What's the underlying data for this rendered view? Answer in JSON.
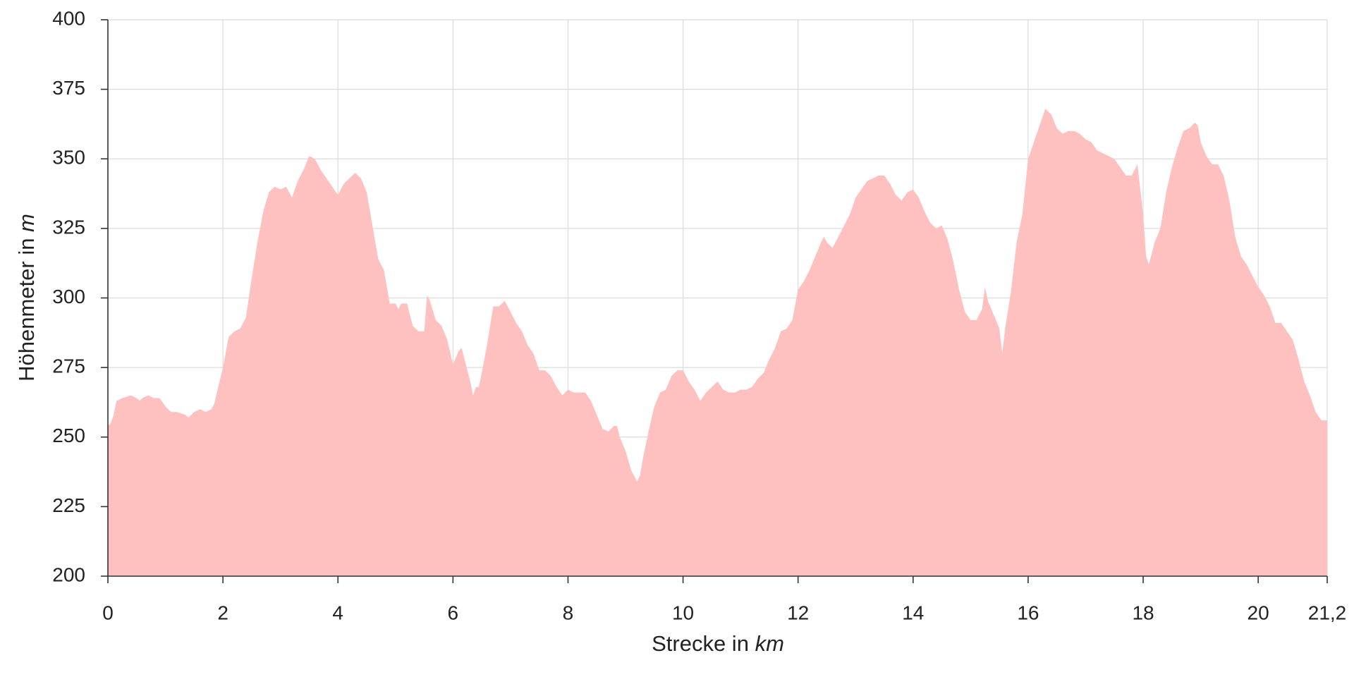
{
  "chart_data": {
    "type": "area",
    "xlabel_text": "Strecke in",
    "xlabel_unit": "km",
    "ylabel_text": "Höhenmeter in",
    "ylabel_unit": "m",
    "color": "#ffc0c0",
    "grid": true,
    "xlim": [
      0,
      21.2
    ],
    "ylim": [
      200,
      400
    ],
    "xticks": [
      0,
      2,
      4,
      6,
      8,
      10,
      12,
      14,
      16,
      18,
      20,
      {
        "value": 21.2,
        "label": "21,2"
      }
    ],
    "yticks": [
      200,
      225,
      250,
      275,
      300,
      325,
      350,
      375,
      400
    ],
    "x": [
      0,
      0.05,
      0.1,
      0.15,
      0.25,
      0.4,
      0.5,
      0.55,
      0.6,
      0.7,
      0.8,
      0.9,
      1.0,
      1.05,
      1.1,
      1.2,
      1.35,
      1.4,
      1.5,
      1.6,
      1.7,
      1.8,
      1.85,
      2.0,
      2.1,
      2.2,
      2.3,
      2.4,
      2.5,
      2.6,
      2.7,
      2.8,
      2.9,
      3.0,
      3.1,
      3.2,
      3.3,
      3.4,
      3.5,
      3.6,
      3.7,
      3.8,
      3.9,
      4.0,
      4.1,
      4.2,
      4.3,
      4.4,
      4.5,
      4.6,
      4.7,
      4.8,
      4.9,
      5.0,
      5.05,
      5.1,
      5.2,
      5.3,
      5.4,
      5.5,
      5.55,
      5.6,
      5.7,
      5.8,
      5.9,
      6.0,
      6.1,
      6.15,
      6.2,
      6.3,
      6.35,
      6.4,
      6.45,
      6.5,
      6.6,
      6.7,
      6.8,
      6.9,
      7.0,
      7.1,
      7.2,
      7.3,
      7.4,
      7.5,
      7.6,
      7.7,
      7.8,
      7.9,
      8.0,
      8.1,
      8.2,
      8.3,
      8.4,
      8.5,
      8.6,
      8.7,
      8.8,
      8.85,
      8.9,
      9.0,
      9.1,
      9.2,
      9.25,
      9.3,
      9.4,
      9.5,
      9.6,
      9.7,
      9.8,
      9.9,
      10.0,
      10.1,
      10.2,
      10.3,
      10.4,
      10.5,
      10.6,
      10.7,
      10.8,
      10.9,
      11.0,
      11.1,
      11.2,
      11.3,
      11.4,
      11.5,
      11.6,
      11.7,
      11.8,
      11.9,
      12.0,
      12.1,
      12.2,
      12.3,
      12.4,
      12.45,
      12.5,
      12.6,
      12.7,
      12.8,
      12.9,
      13.0,
      13.1,
      13.2,
      13.3,
      13.4,
      13.5,
      13.6,
      13.7,
      13.8,
      13.9,
      14.0,
      14.1,
      14.2,
      14.3,
      14.4,
      14.5,
      14.6,
      14.7,
      14.8,
      14.9,
      15.0,
      15.1,
      15.2,
      15.25,
      15.3,
      15.4,
      15.5,
      15.55,
      15.6,
      15.7,
      15.8,
      15.9,
      16.0,
      16.1,
      16.2,
      16.3,
      16.4,
      16.5,
      16.6,
      16.7,
      16.8,
      16.9,
      17.0,
      17.1,
      17.2,
      17.3,
      17.4,
      17.5,
      17.6,
      17.7,
      17.8,
      17.9,
      18.0,
      18.05,
      18.1,
      18.2,
      18.3,
      18.4,
      18.5,
      18.6,
      18.7,
      18.8,
      18.9,
      18.95,
      19.0,
      19.1,
      19.2,
      19.3,
      19.4,
      19.5,
      19.6,
      19.7,
      19.8,
      19.9,
      20.0,
      20.1,
      20.2,
      20.3,
      20.4,
      20.5,
      20.6,
      20.7,
      20.8,
      20.9,
      21.0,
      21.1,
      21.2
    ],
    "values": [
      254,
      255,
      258,
      263,
      264,
      265,
      264,
      263,
      264,
      265,
      264,
      264,
      261,
      260,
      259,
      259,
      258,
      257,
      259,
      260,
      259,
      260,
      262,
      275,
      286,
      288,
      289,
      293,
      307,
      320,
      331,
      338,
      340,
      339,
      340,
      336,
      342,
      346,
      351,
      350,
      346,
      343,
      340,
      337,
      341,
      343,
      345,
      343,
      338,
      326,
      314,
      310,
      298,
      298,
      296,
      298,
      298,
      290,
      288,
      288,
      301,
      299,
      292,
      290,
      285,
      276,
      281,
      282,
      278,
      270,
      265,
      268,
      268,
      273,
      284,
      297,
      297,
      299,
      295,
      291,
      288,
      283,
      280,
      274,
      274,
      272,
      268,
      265,
      267,
      266,
      266,
      266,
      263,
      258,
      253,
      252,
      254,
      254,
      250,
      245,
      238,
      234,
      236,
      242,
      252,
      261,
      266,
      267,
      272,
      274,
      274,
      270,
      267,
      263,
      266,
      268,
      270,
      267,
      266,
      266,
      267,
      267,
      268,
      271,
      273,
      278,
      282,
      288,
      289,
      292,
      303,
      306,
      310,
      315,
      320,
      322,
      320,
      318,
      322,
      326,
      330,
      336,
      339,
      342,
      343,
      344,
      344,
      341,
      337,
      335,
      338,
      339,
      336,
      331,
      327,
      325,
      326,
      321,
      313,
      303,
      295,
      292,
      292,
      296,
      304,
      299,
      294,
      289,
      280,
      289,
      302,
      320,
      330,
      350,
      356,
      362,
      368,
      366,
      361,
      359,
      360,
      360,
      359,
      357,
      356,
      353,
      352,
      351,
      350,
      347,
      344,
      344,
      348,
      330,
      315,
      312,
      320,
      325,
      338,
      347,
      354,
      360,
      361,
      363,
      362,
      356,
      351,
      348,
      348,
      344,
      335,
      322,
      315,
      312,
      308,
      304,
      301,
      297,
      291,
      291,
      288,
      285,
      278,
      270,
      265,
      259,
      256,
      256
    ]
  }
}
